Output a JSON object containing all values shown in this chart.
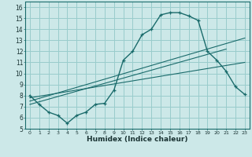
{
  "xlabel": "Humidex (Indice chaleur)",
  "xlim": [
    -0.5,
    23.5
  ],
  "ylim": [
    5,
    16.5
  ],
  "xticks": [
    0,
    1,
    2,
    3,
    4,
    5,
    6,
    7,
    8,
    9,
    10,
    11,
    12,
    13,
    14,
    15,
    16,
    17,
    18,
    19,
    20,
    21,
    22,
    23
  ],
  "yticks": [
    5,
    6,
    7,
    8,
    9,
    10,
    11,
    12,
    13,
    14,
    15,
    16
  ],
  "bg_color": "#cce8e8",
  "grid_color": "#99cccc",
  "line_color": "#1a6b6b",
  "main_x": [
    0,
    1,
    2,
    3,
    4,
    5,
    6,
    7,
    8,
    9,
    10,
    11,
    12,
    13,
    14,
    15,
    16,
    17,
    18,
    19,
    20,
    21,
    22,
    23
  ],
  "main_y": [
    8.0,
    7.2,
    6.5,
    6.2,
    5.5,
    6.2,
    6.5,
    7.2,
    7.3,
    8.5,
    11.2,
    12.0,
    13.5,
    14.0,
    15.3,
    15.5,
    15.5,
    15.2,
    14.8,
    12.0,
    11.2,
    10.2,
    8.8,
    8.1
  ],
  "line1_x": [
    0,
    21
  ],
  "line1_y": [
    7.2,
    12.2
  ],
  "line2_x": [
    0,
    23
  ],
  "line2_y": [
    7.5,
    13.2
  ],
  "line3_x": [
    0,
    23
  ],
  "line3_y": [
    7.8,
    11.0
  ]
}
